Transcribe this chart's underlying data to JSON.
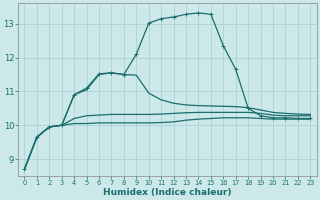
{
  "title": "",
  "xlabel": "Humidex (Indice chaleur)",
  "ylabel": "",
  "bg_color": "#cce8e8",
  "grid_color": "#aad4d4",
  "line_color": "#1a6e6e",
  "xlim": [
    -0.5,
    23.5
  ],
  "ylim": [
    8.5,
    13.6
  ],
  "yticks": [
    9,
    10,
    11,
    12,
    13
  ],
  "xticks": [
    0,
    1,
    2,
    3,
    4,
    5,
    6,
    7,
    8,
    9,
    10,
    11,
    12,
    13,
    14,
    15,
    16,
    17,
    18,
    19,
    20,
    21,
    22,
    23
  ],
  "series": [
    {
      "x": [
        0,
        1,
        2,
        3,
        4,
        5,
        6,
        7,
        8,
        9,
        10,
        11,
        12,
        13,
        14,
        15,
        16,
        17,
        18,
        19,
        20,
        21,
        22,
        23
      ],
      "y": [
        8.7,
        9.65,
        9.95,
        10.0,
        10.05,
        10.05,
        10.07,
        10.07,
        10.07,
        10.07,
        10.07,
        10.08,
        10.1,
        10.15,
        10.18,
        10.2,
        10.22,
        10.22,
        10.22,
        10.2,
        10.18,
        10.18,
        10.18,
        10.18
      ],
      "marker": false,
      "lw": 0.9
    },
    {
      "x": [
        0,
        1,
        2,
        3,
        4,
        5,
        6,
        7,
        8,
        9,
        10,
        11,
        12,
        13,
        14,
        15,
        16,
        17,
        18,
        19,
        20,
        21,
        22,
        23
      ],
      "y": [
        8.7,
        9.65,
        9.95,
        10.0,
        10.2,
        10.28,
        10.3,
        10.32,
        10.32,
        10.32,
        10.32,
        10.33,
        10.35,
        10.37,
        10.38,
        10.38,
        10.38,
        10.38,
        10.38,
        10.35,
        10.3,
        10.28,
        10.28,
        10.28
      ],
      "marker": false,
      "lw": 0.9
    },
    {
      "x": [
        0,
        1,
        2,
        3,
        4,
        5,
        6,
        7,
        8,
        9,
        10,
        11,
        12,
        13,
        14,
        15,
        16,
        17,
        18,
        19,
        20,
        21,
        22,
        23
      ],
      "y": [
        8.7,
        9.65,
        9.95,
        10.0,
        10.9,
        11.05,
        11.5,
        11.55,
        11.5,
        11.48,
        10.95,
        10.75,
        10.65,
        10.6,
        10.58,
        10.57,
        10.56,
        10.55,
        10.52,
        10.45,
        10.38,
        10.35,
        10.33,
        10.32
      ],
      "marker": false,
      "lw": 0.9
    },
    {
      "x": [
        0,
        1,
        2,
        3,
        4,
        5,
        6,
        7,
        8,
        9,
        10,
        11,
        12,
        13,
        14,
        15,
        16,
        17,
        18,
        19,
        20,
        21,
        22,
        23
      ],
      "y": [
        8.7,
        9.65,
        9.95,
        10.0,
        10.9,
        11.1,
        11.52,
        11.55,
        11.5,
        12.1,
        13.02,
        13.15,
        13.2,
        13.28,
        13.32,
        13.28,
        12.35,
        11.65,
        10.5,
        10.28,
        10.22,
        10.22,
        10.2,
        10.2
      ],
      "marker": true,
      "lw": 0.9
    }
  ]
}
